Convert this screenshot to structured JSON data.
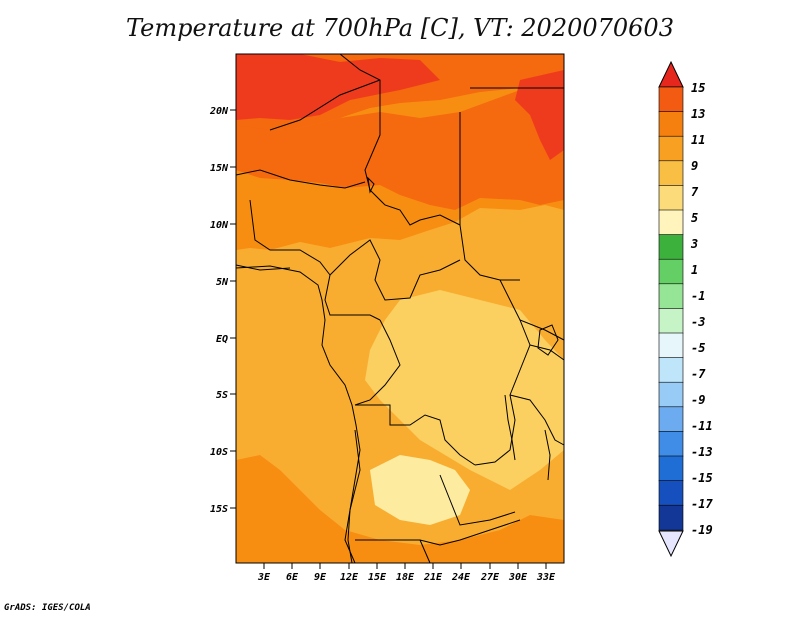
{
  "title": "Temperature at 700hPa [C], VT: 2020070603",
  "credit": "GrADS: IGES/COLA",
  "map": {
    "lat_labels": [
      "20N",
      "15N",
      "10N",
      "5N",
      "EQ",
      "5S",
      "10S",
      "15S"
    ],
    "lon_labels": [
      "3E",
      "6E",
      "9E",
      "12E",
      "15E",
      "18E",
      "21E",
      "24E",
      "27E",
      "30E",
      "33E"
    ],
    "fill_colors": {
      "c13": "#ee3b1d",
      "c11": "#f5690f",
      "c9": "#f78e12",
      "c7": "#f9ad30",
      "c5": "#fbd060",
      "c3": "#fdeca0"
    }
  },
  "colorbar": {
    "labels": [
      "15",
      "13",
      "11",
      "9",
      "7",
      "5",
      "3",
      "1",
      "-1",
      "-3",
      "-5",
      "-7",
      "-9",
      "-11",
      "-13",
      "-15",
      "-17",
      "-19"
    ],
    "colors": [
      "#e5271e",
      "#f35a12",
      "#f6800f",
      "#f8a021",
      "#f9bf45",
      "#fbdb7a",
      "#fff4bb",
      "#3cb23c",
      "#64cf64",
      "#96e496",
      "#c6f4c6",
      "#e6f6fb",
      "#bfe5fa",
      "#98cbf5",
      "#6cabf0",
      "#3f8de6",
      "#1f6ed6",
      "#1650be",
      "#123797",
      "#0a1770"
    ],
    "top_tip_color": "#e5271e",
    "bottom_tip_color": "#e6e6ff"
  }
}
